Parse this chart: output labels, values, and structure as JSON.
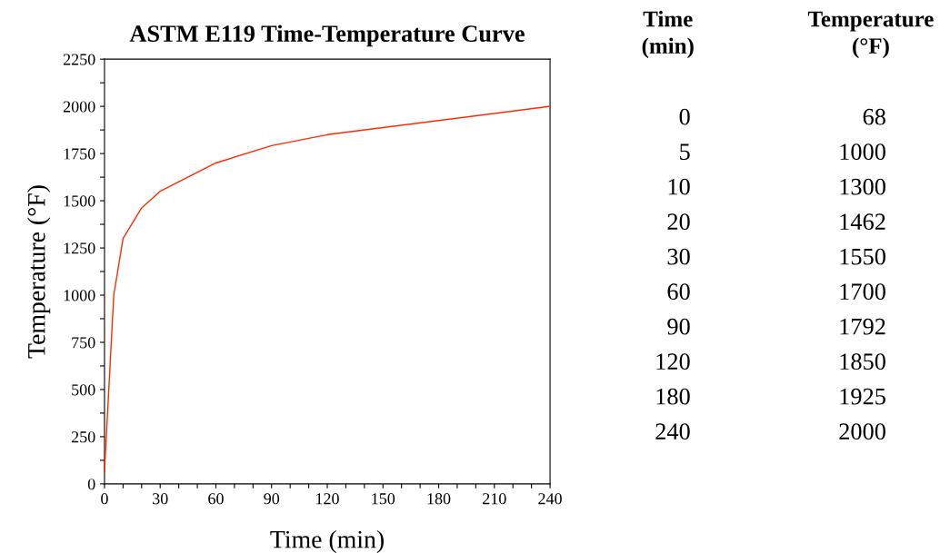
{
  "chart_data": [
    {
      "type": "line",
      "title": "ASTM E119 Time-Temperature Curve",
      "xlabel": "Time (min)",
      "ylabel": "Temperature (°F)",
      "series": [
        {
          "color": "#ff2a00",
          "x": [
            0,
            5,
            10,
            20,
            30,
            60,
            90,
            120,
            180,
            240
          ],
          "values": [
            68,
            1000,
            1300,
            1462,
            1550,
            1700,
            1792,
            1850,
            1925,
            2000
          ]
        }
      ],
      "xlim": [
        0,
        240
      ],
      "ylim": [
        0,
        2250
      ],
      "xticks": [
        0,
        {
          "value": 10,
          "label": null
        },
        {
          "value": 20,
          "label": null
        },
        30,
        {
          "value": 40,
          "label": null
        },
        {
          "value": 50,
          "label": null
        },
        60,
        {
          "value": 70,
          "label": null
        },
        {
          "value": 80,
          "label": null
        },
        90,
        {
          "value": 100,
          "label": null
        },
        {
          "value": 110,
          "label": null
        },
        120,
        {
          "value": 130,
          "label": null
        },
        {
          "value": 140,
          "label": null
        },
        150,
        {
          "value": 160,
          "label": null
        },
        {
          "value": 170,
          "label": null
        },
        180,
        {
          "value": 190,
          "label": null
        },
        {
          "value": 200,
          "label": null
        },
        210,
        {
          "value": 220,
          "label": null
        },
        {
          "value": 230,
          "label": null
        },
        240
      ],
      "yticks": [
        0,
        {
          "value": 125,
          "label": null
        },
        250,
        {
          "value": 375,
          "label": null
        },
        500,
        {
          "value": 625,
          "label": null
        },
        750,
        {
          "value": 875,
          "label": null
        },
        1000,
        {
          "value": 1125,
          "label": null
        },
        1250,
        {
          "value": 1375,
          "label": null
        },
        1500,
        {
          "value": 1625,
          "label": null
        },
        1750,
        {
          "value": 1875,
          "label": null
        },
        2000,
        {
          "value": 2125,
          "label": null
        },
        2250
      ],
      "grid": false,
      "line_style": "solid"
    },
    {
      "type": "other",
      "categories": [
        "0",
        "5",
        "10",
        "20",
        "30",
        "60",
        "90",
        "120",
        "180",
        "240"
      ],
      "values": [
        68,
        1000,
        1300,
        1462,
        1550,
        1700,
        1792,
        1850,
        1925,
        2000
      ],
      "data_labels": true,
      "annotations": [
        "Time\n(min)",
        "Temperature\n(°F)"
      ]
    }
  ]
}
